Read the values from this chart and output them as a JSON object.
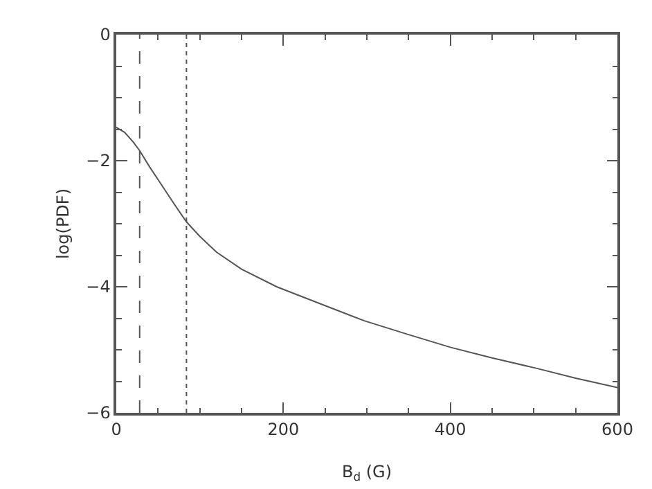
{
  "chart_data": {
    "type": "line",
    "xlabel": "B$_{d}$ (G)",
    "ylabel": "log(PDF)",
    "x": [
      0,
      10,
      20,
      28,
      40,
      50,
      60,
      70,
      84,
      100,
      120,
      150,
      192,
      250,
      297,
      350,
      400,
      450,
      502,
      550,
      600
    ],
    "series": [
      {
        "color": "#555555",
        "values": [
          -1.47,
          -1.55,
          -1.7,
          -1.84,
          -2.1,
          -2.3,
          -2.5,
          -2.7,
          -2.97,
          -3.2,
          -3.45,
          -3.72,
          -4.0,
          -4.3,
          -4.54,
          -4.76,
          -4.96,
          -5.13,
          -5.29,
          -5.45,
          -5.6
        ]
      }
    ],
    "xlim": [
      0,
      600
    ],
    "xticks": [
      0,
      200,
      400,
      600
    ],
    "ylim": [
      -6,
      0
    ],
    "yticks": [
      -6,
      -4,
      -2,
      0
    ],
    "ref_lines": [
      {
        "axis": "x",
        "value": 28,
        "line_style": "dashed",
        "color": "#555555"
      },
      {
        "axis": "x",
        "value": 84,
        "line_style": "dotted",
        "color": "#555555"
      }
    ],
    "grid": false,
    "marker": "none",
    "line_style": "solid"
  }
}
